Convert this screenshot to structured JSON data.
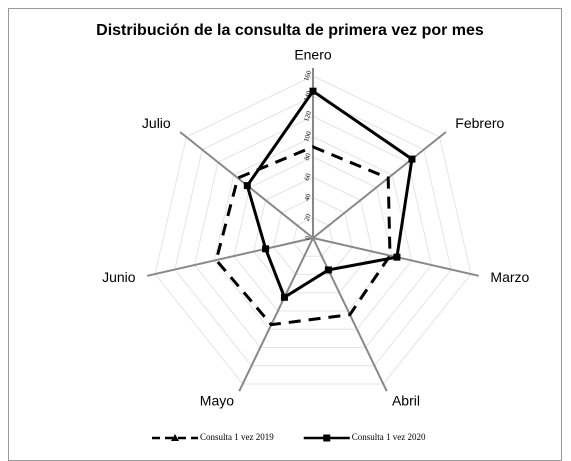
{
  "chart_data": {
    "type": "radar",
    "title": "Distribución de la consulta de primera vez por mes",
    "categories": [
      "Enero",
      "Febrero",
      "Marzo",
      "Abril",
      "Mayo",
      "Junio",
      "Julio"
    ],
    "rlim": [
      0,
      160
    ],
    "rticks": [
      0,
      20,
      40,
      60,
      80,
      100,
      120,
      140,
      160
    ],
    "grid": true,
    "series": [
      {
        "name": "Consulta 1 vez 2019",
        "color": "#000000",
        "line_style": "dashed",
        "marker": "triangle",
        "values": [
          90,
          95,
          78,
          84,
          95,
          98,
          95
        ]
      },
      {
        "name": "Consulta 1 vez 2020",
        "color": "#000000",
        "line_style": "solid",
        "marker": "square",
        "values": [
          145,
          125,
          85,
          35,
          65,
          48,
          83
        ]
      }
    ]
  }
}
